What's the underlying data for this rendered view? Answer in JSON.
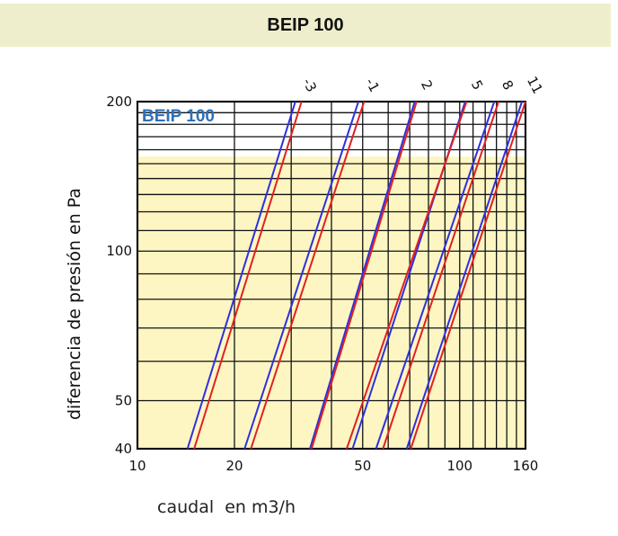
{
  "header": {
    "title": "BEIP 100"
  },
  "chart_data": {
    "type": "line",
    "title": "BEIP 100",
    "xlabel": "caudal  en m3/h",
    "ylabel": "diferencia de presión en Pa",
    "x_scale": "log",
    "y_scale": "log",
    "xlim": [
      10,
      160
    ],
    "ylim": [
      40,
      200
    ],
    "x_ticks": [
      "10",
      "20",
      "50",
      "100",
      "160"
    ],
    "y_ticks": [
      "40",
      "50",
      "100",
      "200"
    ],
    "x_tick_values": [
      10,
      20,
      50,
      100,
      160
    ],
    "y_tick_values": [
      40,
      50,
      100,
      200
    ],
    "x_grid": [
      10,
      20,
      30,
      40,
      50,
      60,
      70,
      80,
      90,
      100,
      110,
      120,
      130,
      140,
      150,
      160
    ],
    "y_grid": [
      40,
      50,
      60,
      70,
      80,
      90,
      100,
      110,
      120,
      130,
      140,
      150,
      160,
      170,
      180,
      190,
      200
    ],
    "grid": true,
    "highlight_band": {
      "y_range": [
        40,
        155
      ],
      "color": "#fdf6c3"
    },
    "series_colors": {
      "blue": "#2f2fe0",
      "red": "#e22020"
    },
    "series": [
      {
        "label": "-3",
        "blue": [
          [
            14.3,
            40
          ],
          [
            30.9,
            200
          ]
        ],
        "red": [
          [
            15.0,
            40
          ],
          [
            32.3,
            200
          ]
        ]
      },
      {
        "label": "-1",
        "blue": [
          [
            21.5,
            40
          ],
          [
            48.5,
            200
          ]
        ],
        "red": [
          [
            22.5,
            40
          ],
          [
            50.5,
            200
          ]
        ]
      },
      {
        "label": "2",
        "blue": [
          [
            34.3,
            40
          ],
          [
            72.5,
            200
          ]
        ],
        "red": [
          [
            34.7,
            40
          ],
          [
            73.5,
            200
          ]
        ]
      },
      {
        "label": "5",
        "blue": [
          [
            46.5,
            40
          ],
          [
            104,
            200
          ]
        ],
        "red": [
          [
            44.6,
            40
          ],
          [
            105,
            200
          ]
        ]
      },
      {
        "label": "8",
        "blue": [
          [
            55,
            40
          ],
          [
            128,
            200
          ]
        ],
        "red": [
          [
            57.8,
            40
          ],
          [
            132,
            200
          ]
        ]
      },
      {
        "label": "11",
        "blue": [
          [
            68.5,
            40
          ],
          [
            156,
            200
          ]
        ],
        "red": [
          [
            70.5,
            40
          ],
          [
            160,
            200
          ]
        ]
      }
    ]
  }
}
